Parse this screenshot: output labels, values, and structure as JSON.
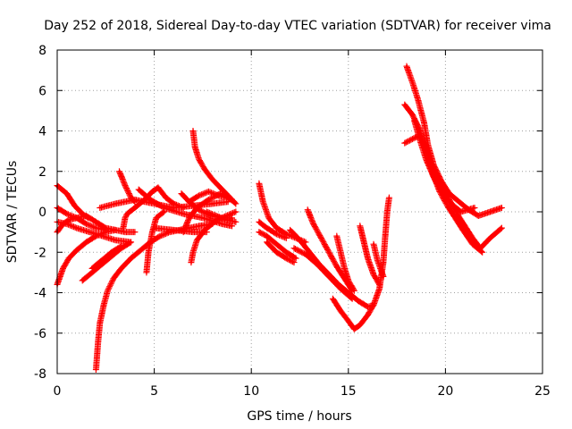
{
  "chart_data": {
    "type": "scatter",
    "title": "Day 252 of 2018, Sidereal Day-to-day VTEC variation (SDTVAR) for receiver vima",
    "xlabel": "GPS time / hours",
    "ylabel": "SDTVAR / TECUs",
    "xlim": [
      0,
      25
    ],
    "ylim": [
      -8,
      8
    ],
    "x_ticks": [
      0,
      5,
      10,
      15,
      20,
      25
    ],
    "x_tick_labels": [
      "0",
      "5",
      "10",
      "15",
      "20",
      "25"
    ],
    "y_ticks": [
      -8,
      -6,
      -4,
      -2,
      0,
      2,
      4,
      6,
      8
    ],
    "y_tick_labels": [
      "-8",
      "-6",
      "-4",
      "-2",
      "0",
      "2",
      "4",
      "6",
      "8"
    ],
    "grid": true,
    "marker": "+",
    "series_color": "#ff0000",
    "series": [
      {
        "name": "track-1",
        "points": [
          [
            0.0,
            1.3
          ],
          [
            0.5,
            0.9
          ],
          [
            0.9,
            0.3
          ],
          [
            1.3,
            -0.1
          ],
          [
            1.6,
            -0.3
          ]
        ]
      },
      {
        "name": "track-2",
        "points": [
          [
            0.0,
            0.2
          ],
          [
            0.5,
            -0.1
          ],
          [
            1.0,
            -0.3
          ],
          [
            1.5,
            -0.6
          ],
          [
            2.0,
            -0.8
          ],
          [
            2.5,
            -0.9
          ]
        ]
      },
      {
        "name": "track-3",
        "points": [
          [
            0.0,
            -3.6
          ],
          [
            0.3,
            -2.8
          ],
          [
            0.6,
            -2.3
          ],
          [
            1.0,
            -1.9
          ],
          [
            1.5,
            -1.5
          ],
          [
            2.0,
            -1.2
          ],
          [
            2.5,
            -1.0
          ],
          [
            3.0,
            -0.9
          ]
        ]
      },
      {
        "name": "track-4",
        "points": [
          [
            0.0,
            -1.0
          ],
          [
            0.3,
            -0.6
          ],
          [
            0.6,
            -0.4
          ],
          [
            1.0,
            -0.3
          ],
          [
            1.5,
            -0.2
          ],
          [
            2.0,
            -0.5
          ],
          [
            2.5,
            -0.8
          ],
          [
            3.0,
            -0.9
          ],
          [
            3.5,
            -1.0
          ],
          [
            4.0,
            -1.0
          ]
        ]
      },
      {
        "name": "track-5",
        "points": [
          [
            0.0,
            -0.5
          ],
          [
            0.5,
            -0.6
          ],
          [
            1.0,
            -0.8
          ],
          [
            2.0,
            -1.1
          ],
          [
            3.0,
            -1.4
          ],
          [
            3.8,
            -1.5
          ]
        ]
      },
      {
        "name": "track-6",
        "points": [
          [
            1.3,
            -3.4
          ],
          [
            1.8,
            -3.0
          ],
          [
            2.3,
            -2.6
          ],
          [
            2.8,
            -2.2
          ],
          [
            3.3,
            -1.8
          ],
          [
            3.8,
            -1.5
          ]
        ]
      },
      {
        "name": "track-7",
        "points": [
          [
            1.8,
            -2.8
          ],
          [
            2.3,
            -2.4
          ],
          [
            2.8,
            -2.0
          ],
          [
            3.3,
            -1.7
          ]
        ]
      },
      {
        "name": "track-8",
        "points": [
          [
            2.0,
            -7.8
          ],
          [
            2.1,
            -6.5
          ],
          [
            2.2,
            -5.5
          ],
          [
            2.4,
            -4.6
          ],
          [
            2.6,
            -3.9
          ],
          [
            2.9,
            -3.3
          ],
          [
            3.3,
            -2.8
          ],
          [
            3.8,
            -2.3
          ],
          [
            4.3,
            -1.9
          ],
          [
            4.8,
            -1.5
          ],
          [
            5.3,
            -1.2
          ],
          [
            5.8,
            -1.0
          ],
          [
            6.3,
            -0.9
          ],
          [
            6.8,
            -0.8
          ],
          [
            7.3,
            -0.7
          ],
          [
            8.0,
            -0.6
          ]
        ]
      },
      {
        "name": "track-9",
        "points": [
          [
            3.2,
            2.0
          ],
          [
            3.5,
            1.3
          ],
          [
            3.8,
            0.7
          ],
          [
            4.0,
            0.5
          ]
        ]
      },
      {
        "name": "track-10",
        "points": [
          [
            3.4,
            -0.8
          ],
          [
            3.5,
            -0.3
          ],
          [
            3.6,
            -0.1
          ],
          [
            4.0,
            0.2
          ],
          [
            4.5,
            0.6
          ],
          [
            4.9,
            1.0
          ],
          [
            5.2,
            1.2
          ],
          [
            5.6,
            0.7
          ],
          [
            6.0,
            0.4
          ],
          [
            6.5,
            0.2
          ]
        ]
      },
      {
        "name": "track-11",
        "points": [
          [
            4.6,
            -3.0
          ],
          [
            4.7,
            -2.0
          ],
          [
            4.9,
            -1.0
          ],
          [
            5.1,
            -0.3
          ],
          [
            5.5,
            0.0
          ]
        ]
      },
      {
        "name": "track-12",
        "points": [
          [
            2.2,
            0.2
          ],
          [
            3.0,
            0.4
          ],
          [
            4.0,
            0.6
          ],
          [
            5.0,
            0.4
          ],
          [
            6.0,
            0.2
          ],
          [
            7.0,
            0.3
          ],
          [
            8.0,
            0.4
          ],
          [
            8.8,
            0.5
          ]
        ]
      },
      {
        "name": "track-13",
        "points": [
          [
            4.2,
            1.1
          ],
          [
            4.8,
            0.6
          ],
          [
            5.5,
            0.2
          ],
          [
            6.5,
            -0.1
          ],
          [
            7.5,
            -0.3
          ],
          [
            8.5,
            -0.6
          ],
          [
            9.0,
            -0.7
          ]
        ]
      },
      {
        "name": "track-14",
        "points": [
          [
            5.0,
            -0.8
          ],
          [
            6.0,
            -0.9
          ],
          [
            7.0,
            -1.0
          ],
          [
            7.7,
            -1.0
          ]
        ]
      },
      {
        "name": "track-15",
        "points": [
          [
            6.5,
            -1.0
          ],
          [
            6.8,
            -0.3
          ],
          [
            7.2,
            0.2
          ],
          [
            7.8,
            0.6
          ],
          [
            8.4,
            0.9
          ],
          [
            9.0,
            0.6
          ]
        ]
      },
      {
        "name": "track-16",
        "points": [
          [
            7.0,
            4.0
          ],
          [
            7.1,
            3.2
          ],
          [
            7.3,
            2.6
          ],
          [
            7.6,
            2.1
          ],
          [
            8.0,
            1.6
          ],
          [
            8.5,
            1.1
          ],
          [
            9.0,
            0.6
          ],
          [
            9.2,
            0.4
          ]
        ]
      },
      {
        "name": "track-17",
        "points": [
          [
            6.9,
            -2.5
          ],
          [
            7.0,
            -2.0
          ],
          [
            7.2,
            -1.4
          ],
          [
            7.6,
            -0.9
          ],
          [
            8.1,
            -0.5
          ],
          [
            8.7,
            -0.2
          ],
          [
            9.2,
            0.0
          ]
        ]
      },
      {
        "name": "track-18",
        "points": [
          [
            6.8,
            0.5
          ],
          [
            7.3,
            0.8
          ],
          [
            7.8,
            1.0
          ],
          [
            8.3,
            0.8
          ],
          [
            8.8,
            0.7
          ],
          [
            9.1,
            0.5
          ]
        ]
      },
      {
        "name": "track-19",
        "points": [
          [
            7.7,
            0.0
          ],
          [
            8.2,
            -0.2
          ],
          [
            8.7,
            -0.4
          ],
          [
            9.2,
            -0.5
          ]
        ]
      },
      {
        "name": "track-20",
        "points": [
          [
            6.4,
            0.9
          ],
          [
            6.8,
            0.5
          ],
          [
            7.3,
            0.1
          ],
          [
            7.9,
            -0.2
          ],
          [
            8.5,
            -0.3
          ],
          [
            9.0,
            -0.3
          ]
        ]
      },
      {
        "name": "track-21",
        "points": [
          [
            10.4,
            1.4
          ],
          [
            10.6,
            0.5
          ],
          [
            10.9,
            -0.3
          ],
          [
            11.3,
            -0.8
          ],
          [
            11.8,
            -1.1
          ],
          [
            12.3,
            -1.3
          ],
          [
            12.8,
            -1.5
          ]
        ]
      },
      {
        "name": "track-22",
        "points": [
          [
            10.4,
            -0.5
          ],
          [
            10.8,
            -0.8
          ],
          [
            11.3,
            -1.1
          ],
          [
            11.8,
            -1.3
          ]
        ]
      },
      {
        "name": "track-23",
        "points": [
          [
            10.4,
            -1.0
          ],
          [
            10.8,
            -1.2
          ],
          [
            11.3,
            -1.6
          ],
          [
            11.8,
            -2.0
          ],
          [
            12.3,
            -2.3
          ]
        ]
      },
      {
        "name": "track-24",
        "points": [
          [
            10.8,
            -1.5
          ],
          [
            11.3,
            -2.0
          ],
          [
            11.8,
            -2.3
          ],
          [
            12.2,
            -2.5
          ]
        ]
      },
      {
        "name": "track-25",
        "points": [
          [
            12.0,
            -0.9
          ],
          [
            12.5,
            -1.4
          ],
          [
            13.0,
            -2.0
          ],
          [
            13.5,
            -2.6
          ],
          [
            14.0,
            -3.1
          ],
          [
            14.5,
            -3.6
          ],
          [
            15.0,
            -4.0
          ],
          [
            15.5,
            -4.4
          ],
          [
            16.0,
            -4.7
          ],
          [
            16.3,
            -4.6
          ]
        ]
      },
      {
        "name": "track-26",
        "points": [
          [
            12.2,
            -1.8
          ],
          [
            12.8,
            -2.1
          ],
          [
            13.4,
            -2.6
          ],
          [
            14.0,
            -3.2
          ],
          [
            14.6,
            -3.8
          ],
          [
            15.2,
            -4.3
          ]
        ]
      },
      {
        "name": "track-27",
        "points": [
          [
            12.9,
            0.1
          ],
          [
            13.2,
            -0.6
          ],
          [
            13.6,
            -1.3
          ],
          [
            14.0,
            -2.0
          ],
          [
            14.4,
            -2.7
          ],
          [
            14.8,
            -3.3
          ],
          [
            15.2,
            -3.9
          ]
        ]
      },
      {
        "name": "track-28",
        "points": [
          [
            14.4,
            -1.2
          ],
          [
            14.6,
            -2.0
          ],
          [
            14.8,
            -2.8
          ],
          [
            15.0,
            -3.4
          ],
          [
            15.3,
            -3.9
          ]
        ]
      },
      {
        "name": "track-29",
        "points": [
          [
            14.2,
            -4.3
          ],
          [
            14.6,
            -4.9
          ],
          [
            15.0,
            -5.4
          ],
          [
            15.3,
            -5.8
          ],
          [
            15.6,
            -5.6
          ],
          [
            16.0,
            -5.1
          ],
          [
            16.3,
            -4.6
          ],
          [
            16.6,
            -3.8
          ],
          [
            16.8,
            -2.5
          ],
          [
            16.9,
            -1.2
          ],
          [
            17.0,
            0.0
          ],
          [
            17.1,
            0.7
          ]
        ]
      },
      {
        "name": "track-30",
        "points": [
          [
            15.6,
            -0.7
          ],
          [
            15.8,
            -1.5
          ],
          [
            16.0,
            -2.3
          ],
          [
            16.3,
            -3.1
          ],
          [
            16.6,
            -3.6
          ]
        ]
      },
      {
        "name": "track-31",
        "points": [
          [
            16.3,
            -1.6
          ],
          [
            16.5,
            -2.4
          ],
          [
            16.8,
            -3.2
          ]
        ]
      },
      {
        "name": "track-32",
        "points": [
          [
            18.0,
            7.2
          ],
          [
            18.3,
            6.4
          ],
          [
            18.6,
            5.5
          ],
          [
            18.9,
            4.4
          ],
          [
            19.1,
            3.3
          ],
          [
            19.4,
            2.3
          ],
          [
            19.8,
            1.5
          ],
          [
            20.2,
            0.9
          ],
          [
            20.7,
            0.5
          ],
          [
            21.2,
            0.1
          ],
          [
            21.7,
            -0.2
          ],
          [
            22.3,
            0.0
          ],
          [
            22.9,
            0.2
          ]
        ]
      },
      {
        "name": "track-33",
        "points": [
          [
            17.9,
            5.3
          ],
          [
            18.3,
            4.8
          ],
          [
            18.7,
            4.0
          ],
          [
            19.0,
            3.0
          ],
          [
            19.4,
            2.0
          ],
          [
            19.8,
            1.3
          ],
          [
            20.2,
            0.6
          ],
          [
            20.6,
            -0.1
          ],
          [
            21.0,
            -0.7
          ],
          [
            21.4,
            -1.3
          ],
          [
            21.8,
            -1.8
          ],
          [
            22.3,
            -1.3
          ],
          [
            22.9,
            -0.8
          ]
        ]
      },
      {
        "name": "track-34",
        "points": [
          [
            17.9,
            3.4
          ],
          [
            18.3,
            3.6
          ],
          [
            18.7,
            3.8
          ],
          [
            19.0,
            3.0
          ],
          [
            19.3,
            2.0
          ],
          [
            19.7,
            1.0
          ],
          [
            20.1,
            0.3
          ],
          [
            20.5,
            -0.3
          ],
          [
            20.9,
            -0.9
          ],
          [
            21.4,
            -1.6
          ],
          [
            21.9,
            -2.0
          ]
        ]
      },
      {
        "name": "track-35",
        "points": [
          [
            18.4,
            4.5
          ],
          [
            18.7,
            3.5
          ],
          [
            19.0,
            2.6
          ],
          [
            19.4,
            1.7
          ],
          [
            19.8,
            1.0
          ],
          [
            20.3,
            0.4
          ],
          [
            20.8,
            0.0
          ],
          [
            21.5,
            0.2
          ]
        ]
      }
    ]
  }
}
